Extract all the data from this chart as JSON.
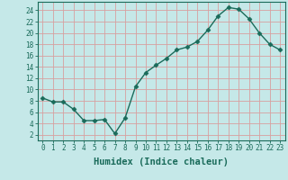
{
  "x_full": [
    0,
    1,
    2,
    3,
    4,
    5,
    6,
    7,
    8,
    9,
    10,
    11,
    12,
    13,
    14,
    15,
    16,
    17,
    18,
    19,
    20,
    21,
    22,
    23
  ],
  "y_full": [
    8.5,
    7.8,
    7.8,
    6.5,
    4.5,
    4.5,
    4.7,
    2.2,
    5.0,
    10.5,
    13.0,
    14.3,
    15.5,
    17.0,
    17.5,
    18.5,
    20.5,
    23.0,
    24.5,
    24.2,
    22.5,
    20.0,
    18.0,
    17.0
  ],
  "line_color": "#1a6b5a",
  "marker": "D",
  "marker_size": 2.5,
  "bg_color": "#c5e8e8",
  "grid_color": "#d8a0a0",
  "xlabel": "Humidex (Indice chaleur)",
  "xlim": [
    -0.5,
    23.5
  ],
  "ylim": [
    1,
    25.5
  ],
  "yticks": [
    2,
    4,
    6,
    8,
    10,
    12,
    14,
    16,
    18,
    20,
    22,
    24
  ],
  "xticks": [
    0,
    1,
    2,
    3,
    4,
    5,
    6,
    7,
    8,
    9,
    10,
    11,
    12,
    13,
    14,
    15,
    16,
    17,
    18,
    19,
    20,
    21,
    22,
    23
  ],
  "tick_label_fontsize": 5.5,
  "xlabel_fontsize": 7.5,
  "linewidth": 1.0
}
